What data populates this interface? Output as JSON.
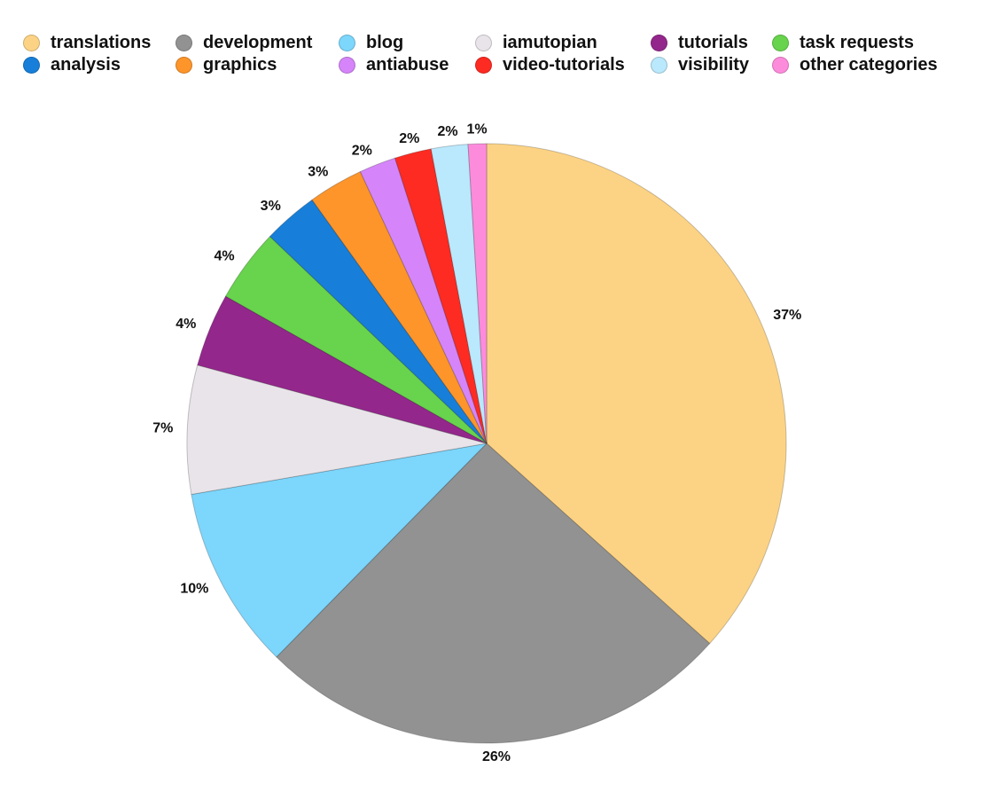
{
  "chart_data": {
    "type": "pie",
    "title": "",
    "legend_position": "top",
    "slices": [
      {
        "name": "translations",
        "value": 37,
        "label": "37%",
        "color": "#FCD385"
      },
      {
        "name": "development",
        "value": 26,
        "label": "26%",
        "color": "#929292"
      },
      {
        "name": "blog",
        "value": 10,
        "label": "10%",
        "color": "#7DD6FC"
      },
      {
        "name": "iamutopian",
        "value": 7,
        "label": "7%",
        "color": "#E9E4E9"
      },
      {
        "name": "tutorials",
        "value": 4,
        "label": "4%",
        "color": "#94278C"
      },
      {
        "name": "task requests",
        "value": 4,
        "label": "4%",
        "color": "#68D34D"
      },
      {
        "name": "analysis",
        "value": 3,
        "label": "3%",
        "color": "#177FD9"
      },
      {
        "name": "graphics",
        "value": 3,
        "label": "3%",
        "color": "#FD952B"
      },
      {
        "name": "antiabuse",
        "value": 2,
        "label": "2%",
        "color": "#D585F9"
      },
      {
        "name": "video-tutorials",
        "value": 2,
        "label": "2%",
        "color": "#FD2B22"
      },
      {
        "name": "visibility",
        "value": 2,
        "label": "2%",
        "color": "#BAE8FC"
      },
      {
        "name": "other categories",
        "value": 1,
        "label": "1%",
        "color": "#FD8BDB"
      }
    ],
    "legend": [
      "translations",
      "analysis",
      "development",
      "graphics",
      "blog",
      "antiabuse",
      "iamutopian",
      "video-tutorials",
      "tutorials",
      "visibility",
      "task requests",
      "other categories"
    ]
  }
}
